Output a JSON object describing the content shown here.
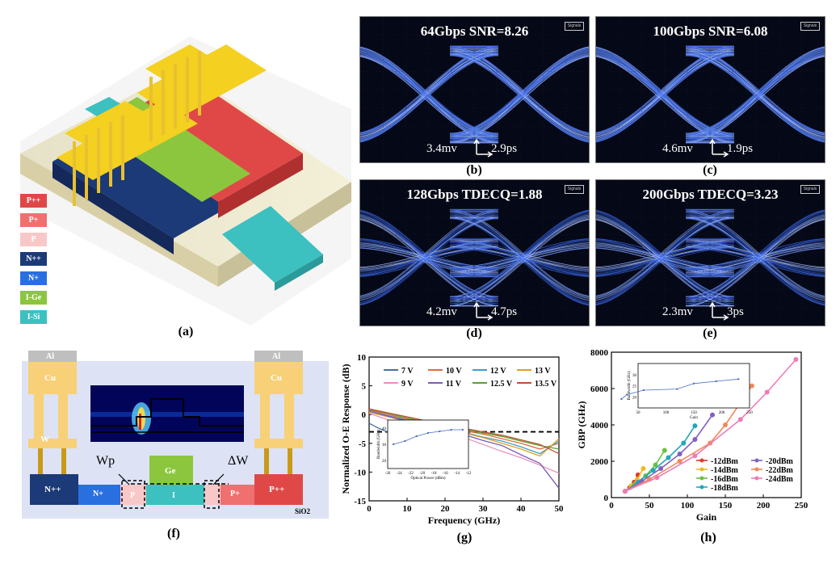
{
  "panel_a": {
    "caption": "(a)",
    "legend": [
      {
        "label": "P++",
        "color": "#e04848"
      },
      {
        "label": "P+",
        "color": "#f07070"
      },
      {
        "label": "P",
        "color": "#f8c8c8"
      },
      {
        "label": "N++",
        "color": "#1c3a78"
      },
      {
        "label": "N+",
        "color": "#2a6fe0"
      },
      {
        "label": "I-Ge",
        "color": "#8cc63e"
      },
      {
        "label": "I-Si",
        "color": "#3cc0c0"
      }
    ]
  },
  "eyes": [
    {
      "caption": "(b)",
      "title": "64Gbps  SNR=8.26",
      "v": "3.4mv",
      "t": "2.9ps",
      "tag": "Signals",
      "levels": 2
    },
    {
      "caption": "(c)",
      "title": "100Gbps  SNR=6.08",
      "v": "4.6mv",
      "t": "1.9ps",
      "tag": "Signals",
      "levels": 2
    },
    {
      "caption": "(d)",
      "title": "128Gbps  TDECQ=1.88",
      "v": "4.2mv",
      "t": "4.7ps",
      "tag": "Signals",
      "levels": 4
    },
    {
      "caption": "(e)",
      "title": "200Gbps  TDECQ=3.23",
      "v": "2.3mv",
      "t": "3ps",
      "tag": "Signals",
      "levels": 4
    }
  ],
  "panel_f": {
    "caption": "(f)",
    "labels": {
      "al_left": "Al",
      "al_right": "Al",
      "cu_left": "Cu",
      "cu_right": "Cu",
      "w": "W",
      "wp": "Wp",
      "dw": "ΔW",
      "ge": "Ge",
      "npp": "N++",
      "np": "N+",
      "p": "P",
      "i": "I",
      "pp": "P+",
      "ppp": "P++",
      "sio2": "SiO2"
    }
  },
  "chart_data": [
    {
      "type": "line",
      "caption": "(g)",
      "xlabel": "Frequency (GHz)",
      "ylabel": "Normalized O-E Response (dB)",
      "xlim": [
        0,
        50
      ],
      "ylim": [
        -15,
        10
      ],
      "xticks": [
        0,
        10,
        20,
        30,
        40,
        50
      ],
      "yticks": [
        10,
        5,
        0,
        -5,
        -10,
        -15
      ],
      "reference_line_db": -3,
      "series": [
        {
          "name": "7 V",
          "color": "#4a6fa5",
          "x": [
            0,
            2,
            4,
            6,
            8,
            10,
            12,
            14,
            16,
            18
          ],
          "y": [
            -1.5,
            -2.2,
            -2.8,
            -3.3,
            -3.2,
            -3.6,
            -3.8,
            -4.2,
            -4.8,
            -5.6
          ]
        },
        {
          "name": "10 V",
          "color": "#e06b3a",
          "x": [
            0,
            5,
            10,
            15,
            20,
            25,
            30,
            35,
            40,
            45,
            50
          ],
          "y": [
            0.8,
            0,
            -0.8,
            -1.4,
            -2.1,
            -2.8,
            -3.4,
            -4.2,
            -5.0,
            -6.0,
            -5.0
          ]
        },
        {
          "name": "12 V",
          "color": "#3aa0c8",
          "x": [
            0,
            5,
            10,
            15,
            20,
            25,
            30,
            35,
            40,
            45,
            50
          ],
          "y": [
            0.6,
            -0.2,
            -1.0,
            -1.8,
            -2.5,
            -3.1,
            -3.9,
            -4.6,
            -5.6,
            -6.8,
            -4.6
          ]
        },
        {
          "name": "13 V",
          "color": "#e0a020",
          "x": [
            0,
            5,
            10,
            15,
            20,
            25,
            30,
            35,
            40,
            45,
            50
          ],
          "y": [
            0.4,
            -0.4,
            -1.2,
            -2.0,
            -2.6,
            -3.2,
            -4.0,
            -5.0,
            -6.0,
            -7.2,
            -4.2
          ]
        },
        {
          "name": "9 V",
          "color": "#e890c0",
          "x": [
            0,
            5,
            10,
            15,
            20,
            25,
            30,
            35,
            40,
            45,
            50
          ],
          "y": [
            0.2,
            -0.9,
            -1.8,
            -2.6,
            -3.2,
            -4.0,
            -5.2,
            -6.4,
            -7.5,
            -8.8,
            -10.2
          ]
        },
        {
          "name": "11 V",
          "color": "#7a5ab8",
          "x": [
            0,
            5,
            10,
            15,
            20,
            25,
            30,
            35,
            40,
            45,
            50
          ],
          "y": [
            0.6,
            -0.3,
            -1.1,
            -1.9,
            -2.6,
            -3.5,
            -4.5,
            -5.4,
            -7.0,
            -8.5,
            -12.8
          ]
        },
        {
          "name": "12.5 V",
          "color": "#5aa030",
          "x": [
            0,
            5,
            10,
            15,
            20,
            25,
            30,
            35,
            40,
            45,
            50
          ],
          "y": [
            0.9,
            0.2,
            -0.6,
            -1.3,
            -2.0,
            -2.6,
            -3.2,
            -3.8,
            -4.6,
            -5.4,
            -6.0
          ]
        },
        {
          "name": "13.5 V",
          "color": "#c05030",
          "x": [
            0,
            5,
            10,
            15,
            20,
            25,
            30,
            35,
            40,
            45,
            50
          ],
          "y": [
            1.0,
            0.3,
            -0.4,
            -1.1,
            -1.8,
            -2.4,
            -3.0,
            -3.6,
            -4.4,
            -5.2,
            -6.8
          ]
        }
      ],
      "inset": {
        "xlabel": "Optical Power (dBm)",
        "ylabel": "Bandwidth (GHz)",
        "xticks": [
          -26,
          -24,
          -22,
          -20,
          -18,
          -16,
          -14,
          -12
        ],
        "yticks": [
          20,
          30,
          40
        ],
        "x": [
          -25,
          -23,
          -21,
          -19,
          -17,
          -15,
          -13
        ],
        "y": [
          30,
          32,
          35,
          37,
          38,
          39,
          39
        ]
      }
    },
    {
      "type": "line",
      "caption": "(h)",
      "xlabel": "Gain",
      "ylabel": "GBP (GHz)",
      "xlim": [
        0,
        250
      ],
      "ylim": [
        0,
        8000
      ],
      "xticks": [
        0,
        50,
        100,
        150,
        200,
        250
      ],
      "yticks": [
        0,
        2000,
        4000,
        6000,
        8000
      ],
      "series": [
        {
          "name": "-12dBm",
          "color": "#e03a2a",
          "x": [
            18,
            24,
            30,
            35
          ],
          "y": [
            350,
            550,
            850,
            1250
          ]
        },
        {
          "name": "-14dBm",
          "color": "#f0b820",
          "x": [
            18,
            26,
            34,
            42
          ],
          "y": [
            350,
            650,
            1000,
            1600
          ]
        },
        {
          "name": "-16dBm",
          "color": "#6ac040",
          "x": [
            18,
            30,
            45,
            58,
            70
          ],
          "y": [
            350,
            700,
            1200,
            1800,
            2600
          ]
        },
        {
          "name": "-18dBm",
          "color": "#20a8b8",
          "x": [
            18,
            35,
            55,
            75,
            95,
            110
          ],
          "y": [
            350,
            850,
            1500,
            2200,
            3000,
            3950
          ]
        },
        {
          "name": "-20dBm",
          "color": "#8060c0",
          "x": [
            18,
            40,
            65,
            90,
            110,
            133
          ],
          "y": [
            350,
            900,
            1600,
            2400,
            3200,
            4550
          ]
        },
        {
          "name": "-22dBm",
          "color": "#f0885a",
          "x": [
            18,
            50,
            90,
            130,
            150,
            185
          ],
          "y": [
            350,
            1000,
            2000,
            3000,
            4000,
            6150
          ]
        },
        {
          "name": "-24dBm",
          "color": "#f07ab8",
          "x": [
            18,
            60,
            110,
            170,
            205,
            243
          ],
          "y": [
            350,
            1100,
            2300,
            4300,
            5800,
            7600
          ]
        }
      ],
      "inset": {
        "xlabel": "Gain",
        "ylabel": "Bandwidth (GHz)",
        "xticks": [
          50,
          100,
          150,
          200,
          250
        ],
        "yticks": [
          20,
          25,
          30
        ],
        "x": [
          20,
          30,
          60,
          120,
          150,
          190,
          230
        ],
        "y": [
          19,
          21,
          23,
          23.5,
          26,
          27,
          28
        ]
      }
    }
  ]
}
